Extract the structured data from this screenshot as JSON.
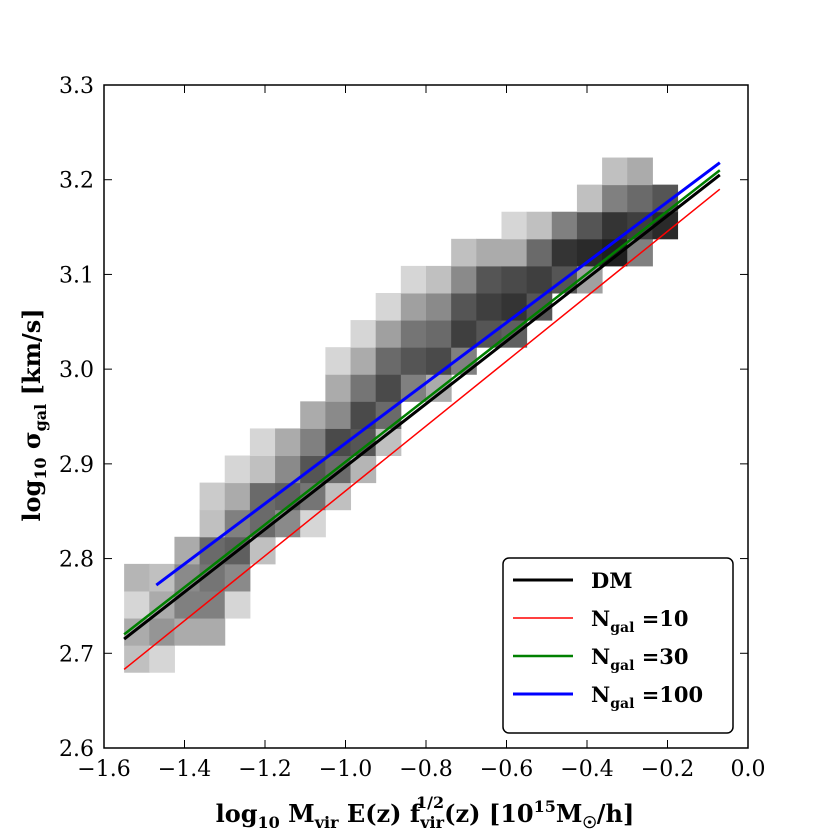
{
  "chart_data": {
    "type": "heatmap",
    "xlabel": "log10 Mvir E(z) f_vir^1/2(z) [10^15 M☉/h]",
    "ylabel": "log10 σgal [km/s]",
    "xlabel_parts": {
      "base": "log",
      "base_sub": "10",
      "m": " M",
      "m_sub": "vir",
      "ez": " E(z) f",
      "f_sub": "vir",
      "f_sup": "1/2",
      "rest": "(z) [10",
      "pow": "15",
      "msun": "M",
      "sun_sub": "☉",
      "end": "/h]"
    },
    "ylabel_parts": {
      "base": "log",
      "base_sub": "10",
      "sigma": " σ",
      "sigma_sub": "gal",
      "unit": " [km/s]"
    },
    "xlim": [
      -1.6,
      0.0
    ],
    "ylim": [
      2.6,
      3.3
    ],
    "xticks": [
      -1.6,
      -1.4,
      -1.2,
      -1.0,
      -0.8,
      -0.6,
      -0.4,
      -0.2,
      0.0
    ],
    "xtick_labels": [
      "−1.6",
      "−1.4",
      "−1.2",
      "−1.0",
      "−0.8",
      "−0.6",
      "−0.4",
      "−0.2",
      "0.0"
    ],
    "yticks": [
      2.6,
      2.7,
      2.8,
      2.9,
      3.0,
      3.1,
      3.2,
      3.3
    ],
    "ytick_labels": [
      "2.6",
      "2.7",
      "2.8",
      "2.9",
      "3.0",
      "3.1",
      "3.2",
      "3.3"
    ],
    "histogram": {
      "x0": -1.55,
      "dx": 0.0625,
      "y0": 2.68,
      "dy": 0.0286,
      "cells": [
        [
          0,
          0,
          0.2
        ],
        [
          0,
          1,
          0.3
        ],
        [
          0,
          2,
          0.1
        ],
        [
          0,
          3,
          0.25
        ],
        [
          1,
          0,
          0.1
        ],
        [
          1,
          1,
          0.4
        ],
        [
          1,
          2,
          0.3
        ],
        [
          1,
          3,
          0.2
        ],
        [
          2,
          1,
          0.3
        ],
        [
          2,
          2,
          0.5
        ],
        [
          2,
          3,
          0.45
        ],
        [
          2,
          4,
          0.3
        ],
        [
          3,
          1,
          0.3
        ],
        [
          3,
          2,
          0.5
        ],
        [
          3,
          3,
          0.55
        ],
        [
          3,
          4,
          0.6
        ],
        [
          3,
          5,
          0.2
        ],
        [
          3,
          6,
          0.15
        ],
        [
          4,
          2,
          0.1
        ],
        [
          4,
          3,
          0.45
        ],
        [
          4,
          4,
          0.65
        ],
        [
          4,
          5,
          0.5
        ],
        [
          4,
          6,
          0.3
        ],
        [
          4,
          7,
          0.1
        ],
        [
          5,
          4,
          0.2
        ],
        [
          5,
          5,
          0.6
        ],
        [
          5,
          6,
          0.6
        ],
        [
          5,
          7,
          0.2
        ],
        [
          5,
          8,
          0.1
        ],
        [
          6,
          5,
          0.45
        ],
        [
          6,
          6,
          0.65
        ],
        [
          6,
          7,
          0.45
        ],
        [
          6,
          8,
          0.3
        ],
        [
          7,
          5,
          0.1
        ],
        [
          7,
          6,
          0.55
        ],
        [
          7,
          7,
          0.7
        ],
        [
          7,
          8,
          0.5
        ],
        [
          7,
          9,
          0.3
        ],
        [
          8,
          6,
          0.2
        ],
        [
          8,
          7,
          0.6
        ],
        [
          8,
          8,
          0.75
        ],
        [
          8,
          9,
          0.45
        ],
        [
          8,
          10,
          0.3
        ],
        [
          8,
          11,
          0.1
        ],
        [
          9,
          7,
          0.25
        ],
        [
          9,
          8,
          0.7
        ],
        [
          9,
          9,
          0.75
        ],
        [
          9,
          10,
          0.55
        ],
        [
          9,
          11,
          0.3
        ],
        [
          9,
          12,
          0.1
        ],
        [
          10,
          8,
          0.2
        ],
        [
          10,
          9,
          0.6
        ],
        [
          10,
          10,
          0.75
        ],
        [
          10,
          11,
          0.6
        ],
        [
          10,
          12,
          0.35
        ],
        [
          10,
          13,
          0.1
        ],
        [
          11,
          10,
          0.5
        ],
        [
          11,
          11,
          0.7
        ],
        [
          11,
          12,
          0.55
        ],
        [
          11,
          13,
          0.35
        ],
        [
          11,
          14,
          0.1
        ],
        [
          12,
          10,
          0.3
        ],
        [
          12,
          11,
          0.75
        ],
        [
          12,
          12,
          0.6
        ],
        [
          12,
          13,
          0.45
        ],
        [
          12,
          14,
          0.2
        ],
        [
          13,
          11,
          0.5
        ],
        [
          13,
          12,
          0.8
        ],
        [
          13,
          13,
          0.7
        ],
        [
          13,
          14,
          0.45
        ],
        [
          13,
          15,
          0.2
        ],
        [
          14,
          12,
          0.7
        ],
        [
          14,
          13,
          0.8
        ],
        [
          14,
          14,
          0.7
        ],
        [
          14,
          15,
          0.3
        ],
        [
          15,
          12,
          0.65
        ],
        [
          15,
          13,
          0.85
        ],
        [
          15,
          14,
          0.75
        ],
        [
          15,
          15,
          0.3
        ],
        [
          15,
          16,
          0.1
        ],
        [
          16,
          13,
          0.7
        ],
        [
          16,
          14,
          0.8
        ],
        [
          16,
          15,
          0.6
        ],
        [
          16,
          16,
          0.2
        ],
        [
          17,
          14,
          0.7
        ],
        [
          17,
          15,
          0.85
        ],
        [
          17,
          16,
          0.5
        ],
        [
          18,
          14,
          0.35
        ],
        [
          18,
          15,
          0.9
        ],
        [
          18,
          16,
          0.7
        ],
        [
          18,
          17,
          0.2
        ],
        [
          19,
          15,
          0.95
        ],
        [
          19,
          16,
          0.85
        ],
        [
          19,
          17,
          0.5
        ],
        [
          19,
          18,
          0.2
        ],
        [
          20,
          15,
          0.5
        ],
        [
          20,
          16,
          0.8
        ],
        [
          20,
          17,
          0.6
        ],
        [
          20,
          18,
          0.3
        ],
        [
          21,
          16,
          0.9
        ],
        [
          21,
          17,
          0.7
        ]
      ]
    },
    "series": [
      {
        "name": "DM",
        "color": "#000000",
        "width": 3,
        "x": [
          -1.55,
          -0.07
        ],
        "y": [
          2.715,
          3.205
        ]
      },
      {
        "name": "N_gal =10",
        "color": "#ff0000",
        "width": 1.5,
        "x": [
          -1.55,
          -0.07
        ],
        "y": [
          2.683,
          3.19
        ]
      },
      {
        "name": "N_gal =30",
        "color": "#008000",
        "width": 2.5,
        "x": [
          -1.55,
          -0.07
        ],
        "y": [
          2.72,
          3.21
        ]
      },
      {
        "name": "N_gal =100",
        "color": "#0000ff",
        "width": 3,
        "x": [
          -1.47,
          -0.07
        ],
        "y": [
          2.772,
          3.218
        ]
      }
    ],
    "legend": {
      "position": "lower-right",
      "entries": [
        {
          "main": "DM",
          "sub": "",
          "tail": ""
        },
        {
          "main": "N",
          "sub": "gal",
          "tail": " =10"
        },
        {
          "main": "N",
          "sub": "gal",
          "tail": " =30"
        },
        {
          "main": "N",
          "sub": "gal",
          "tail": " =100"
        }
      ]
    }
  }
}
